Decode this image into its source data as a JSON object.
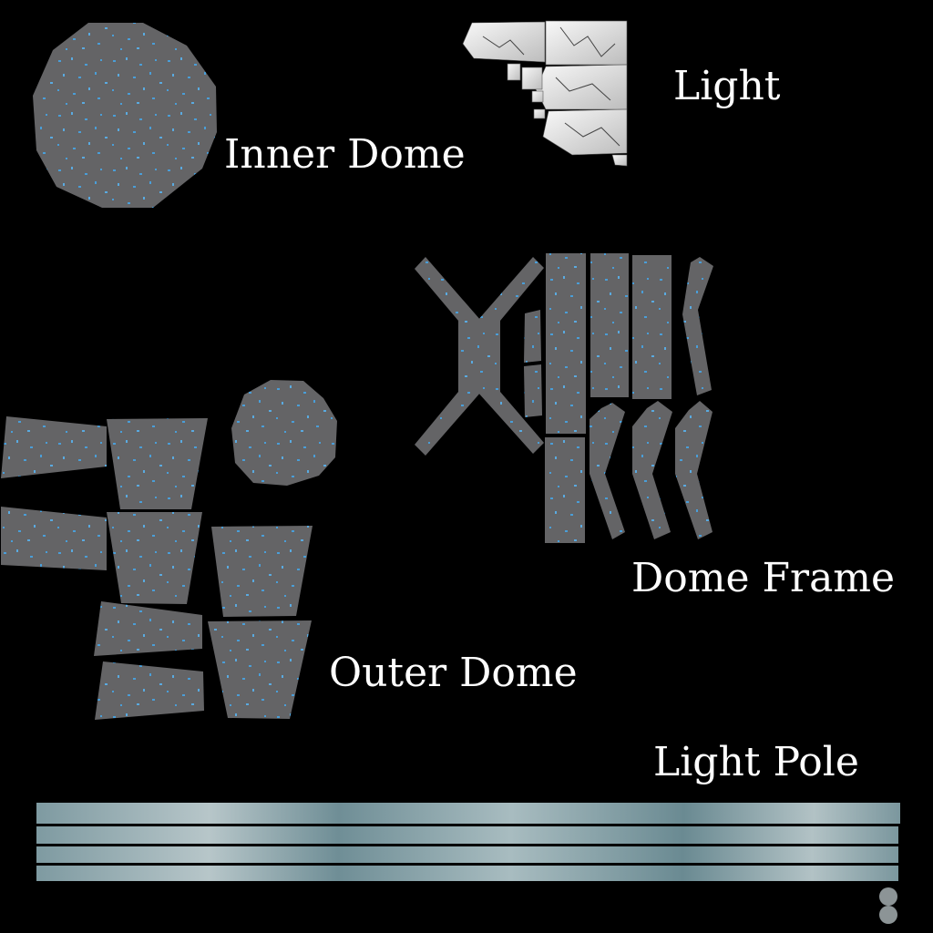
{
  "labels": {
    "inner_dome": "Inner Dome",
    "light": "Light",
    "dome_frame": "Dome Frame",
    "outer_dome": "Outer Dome",
    "light_pole": "Light Pole"
  },
  "colors": {
    "background": "#000000",
    "panel_gray": "#646466",
    "speckle_blue": "#4a9ed8",
    "light_white": "#ececec",
    "pole_teal": "#6f8e96",
    "label_white": "#ffffff"
  }
}
